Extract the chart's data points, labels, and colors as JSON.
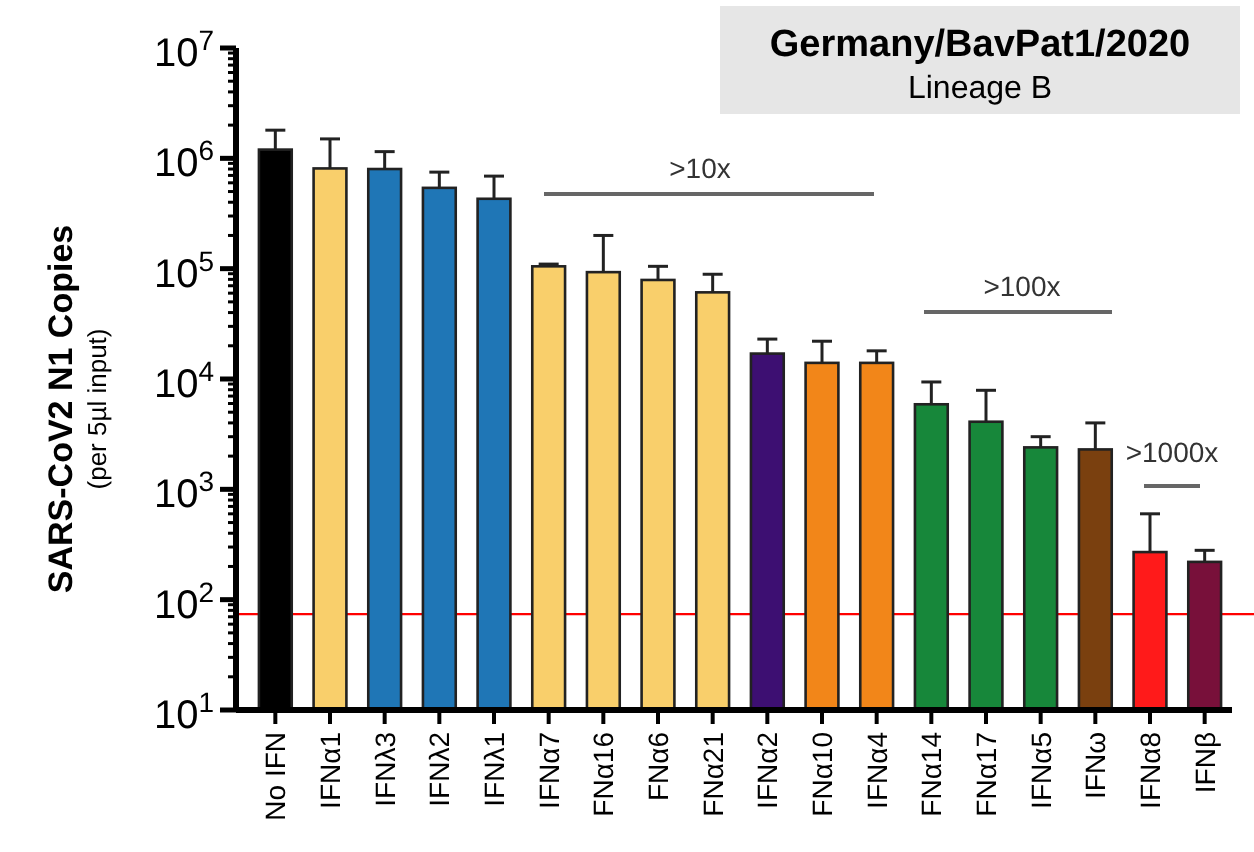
{
  "chart_data": {
    "type": "bar",
    "title": "Germany/BavPat1/2020",
    "subtitle": "Lineage B",
    "ylabel": "SARS-CoV2 N1 Copies\n(per 5µl input)",
    "categories": [
      "No IFN",
      "IFNα1",
      "IFNλ3",
      "IFNλ2",
      "IFNλ1",
      "IFNα7",
      "FNα16",
      "FNα6",
      "FNα21",
      "IFNα2",
      "FNα10",
      "IFNα4",
      "FNα14",
      "FNα17",
      "IFNα5",
      "IFNω",
      "IFNα8",
      "IFNβ"
    ],
    "values": [
      1200000,
      810000,
      800000,
      540000,
      430000,
      105000,
      93000,
      79000,
      61000,
      17000,
      14000,
      14000,
      5900,
      4100,
      2400,
      2300,
      270,
      220
    ],
    "errors": [
      [
        1200000,
        1800000
      ],
      [
        810000,
        1500000
      ],
      [
        800000,
        1150000
      ],
      [
        540000,
        750000
      ],
      [
        430000,
        690000
      ],
      [
        105000,
        110000
      ],
      [
        93000,
        200000
      ],
      [
        79000,
        105000
      ],
      [
        61000,
        89000
      ],
      [
        17000,
        23000
      ],
      [
        14000,
        22000
      ],
      [
        14000,
        18000
      ],
      [
        5900,
        9400
      ],
      [
        4100,
        7900
      ],
      [
        2400,
        3000
      ],
      [
        2300,
        4000
      ],
      [
        270,
        600
      ],
      [
        220,
        280
      ]
    ],
    "colors": [
      "#000000",
      "#f9cf6b",
      "#1f76b6",
      "#1f76b6",
      "#1f76b6",
      "#f9cf6b",
      "#f9cf6b",
      "#f9cf6b",
      "#f9cf6b",
      "#3d0f72",
      "#f28619",
      "#f28619",
      "#17873a",
      "#17873a",
      "#17873a",
      "#7a400f",
      "#ff1a1a",
      "#78103a"
    ],
    "log": true,
    "ylim": [
      10,
      10000000
    ],
    "yticks": [
      {
        "value": 10,
        "label": "10$^{1}$"
      },
      {
        "value": 20,
        "label": null
      },
      {
        "value": 30,
        "label": null
      },
      {
        "value": 40,
        "label": null
      },
      {
        "value": 50,
        "label": null
      },
      {
        "value": 60,
        "label": null
      },
      {
        "value": 70,
        "label": null
      },
      {
        "value": 80,
        "label": null
      },
      {
        "value": 90,
        "label": null
      },
      {
        "value": 100,
        "label": "10$^{2}$"
      },
      {
        "value": 200,
        "label": null
      },
      {
        "value": 300,
        "label": null
      },
      {
        "value": 400,
        "label": null
      },
      {
        "value": 500,
        "label": null
      },
      {
        "value": 600,
        "label": null
      },
      {
        "value": 700,
        "label": null
      },
      {
        "value": 800,
        "label": null
      },
      {
        "value": 900,
        "label": null
      },
      {
        "value": 1000,
        "label": "10$^{3}$"
      },
      {
        "value": 2000,
        "label": null
      },
      {
        "value": 3000,
        "label": null
      },
      {
        "value": 4000,
        "label": null
      },
      {
        "value": 5000,
        "label": null
      },
      {
        "value": 6000,
        "label": null
      },
      {
        "value": 7000,
        "label": null
      },
      {
        "value": 8000,
        "label": null
      },
      {
        "value": 9000,
        "label": null
      },
      {
        "value": 10000,
        "label": "10$^{4}$"
      },
      {
        "value": 20000,
        "label": null
      },
      {
        "value": 30000,
        "label": null
      },
      {
        "value": 40000,
        "label": null
      },
      {
        "value": 50000,
        "label": null
      },
      {
        "value": 60000,
        "label": null
      },
      {
        "value": 70000,
        "label": null
      },
      {
        "value": 80000,
        "label": null
      },
      {
        "value": 90000,
        "label": null
      },
      {
        "value": 100000,
        "label": "10$^{5}$"
      },
      {
        "value": 200000,
        "label": null
      },
      {
        "value": 300000,
        "label": null
      },
      {
        "value": 400000,
        "label": null
      },
      {
        "value": 500000,
        "label": null
      },
      {
        "value": 600000,
        "label": null
      },
      {
        "value": 700000,
        "label": null
      },
      {
        "value": 800000,
        "label": null
      },
      {
        "value": 900000,
        "label": null
      },
      {
        "value": 1000000,
        "label": "10$^{6}$"
      },
      {
        "value": 2000000,
        "label": null
      },
      {
        "value": 3000000,
        "label": null
      },
      {
        "value": 4000000,
        "label": null
      },
      {
        "value": 5000000,
        "label": null
      },
      {
        "value": 6000000,
        "label": null
      },
      {
        "value": 7000000,
        "label": null
      },
      {
        "value": 8000000,
        "label": null
      },
      {
        "value": 9000000,
        "label": null
      },
      {
        "value": 10000000,
        "label": "10$^{7}$"
      }
    ],
    "ref_lines": [
      {
        "axis": "y",
        "value": 74,
        "color": "#ff0000"
      }
    ],
    "annotations": [
      ">10x",
      ">100x",
      ">1000x"
    ],
    "grid": false
  }
}
